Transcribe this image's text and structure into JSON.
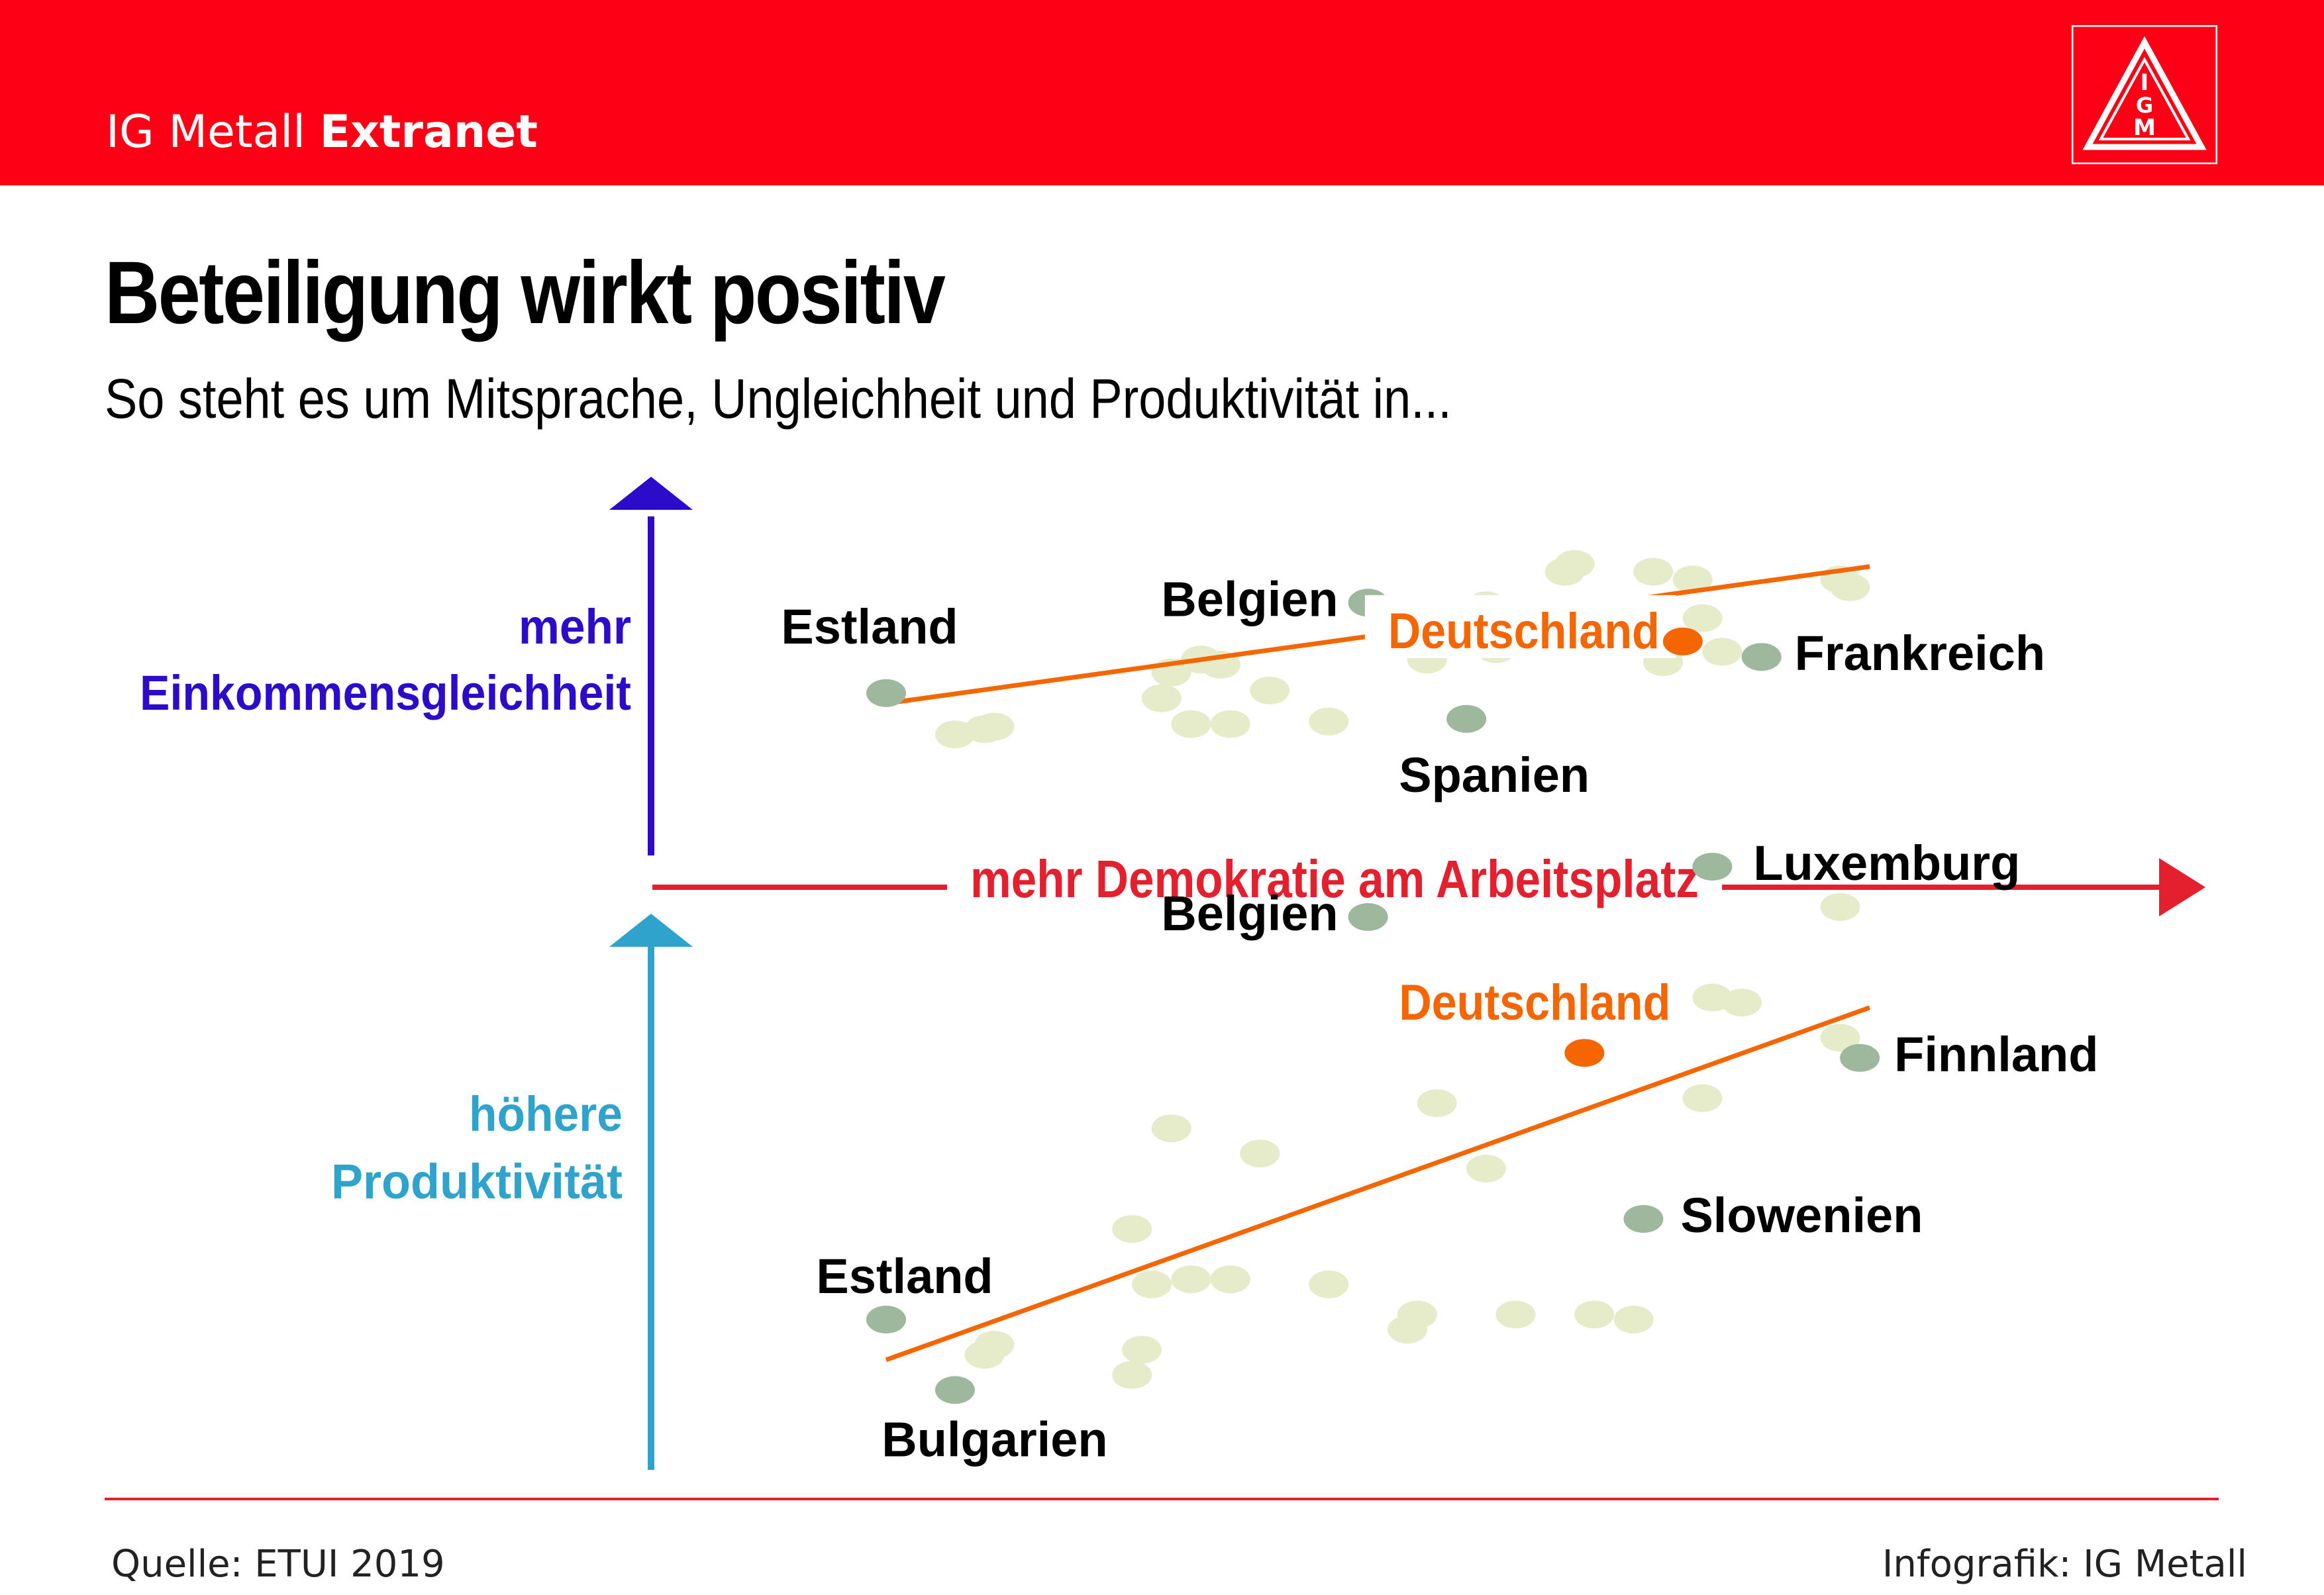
{
  "header": {
    "brand_regular": "IG Metall ",
    "brand_bold": "Extranet",
    "logo_text": "IGM"
  },
  "title": "Beteiligung wirkt positiv",
  "subtitle": "So steht es um Mitsprache, Ungleichheit und Produktivität in...",
  "footer": {
    "source": "Quelle: ETUI 2019",
    "credit": "Infografik: IG Metall"
  },
  "colors": {
    "header_red": "#fe0016",
    "axis_red": "#e5202e",
    "income_axis": "#2d0bcb",
    "productivity_axis": "#30a3cc",
    "highlight_orange": "#f56600",
    "labeled_point": "#9db89c",
    "background_point": "#e6ecc9"
  },
  "chart_data": [
    {
      "type": "scatter",
      "title": "",
      "xlabel": "mehr Demokratie am Arbeitsplatz",
      "ylabel": "mehr Einkommensgleichheit",
      "xlim": [
        0,
        100
      ],
      "ylim": [
        0,
        100
      ],
      "trendline": {
        "x": [
          0,
          100
        ],
        "y": [
          4,
          57
        ]
      },
      "highlight": {
        "label": "Deutschland",
        "x": 81,
        "y": 28
      },
      "labeled_points": [
        {
          "label": "Estland",
          "x": 0,
          "y": 8
        },
        {
          "label": "Belgien",
          "x": 49,
          "y": 43
        },
        {
          "label": "Frankreich",
          "x": 89,
          "y": 22
        },
        {
          "label": "Spanien",
          "x": 59,
          "y": -2
        }
      ],
      "background_points": [
        {
          "x": 7,
          "y": -8
        },
        {
          "x": 10,
          "y": -6
        },
        {
          "x": 11,
          "y": -5
        },
        {
          "x": 28,
          "y": 6
        },
        {
          "x": 29,
          "y": 16
        },
        {
          "x": 31,
          "y": -4
        },
        {
          "x": 32,
          "y": 21
        },
        {
          "x": 34,
          "y": 19
        },
        {
          "x": 35,
          "y": -4
        },
        {
          "x": 39,
          "y": 9
        },
        {
          "x": 45,
          "y": -3
        },
        {
          "x": 55,
          "y": 21
        },
        {
          "x": 58,
          "y": 33
        },
        {
          "x": 61,
          "y": 42
        },
        {
          "x": 62,
          "y": 25
        },
        {
          "x": 69,
          "y": 55
        },
        {
          "x": 70,
          "y": 58
        },
        {
          "x": 78,
          "y": 55
        },
        {
          "x": 79,
          "y": 20
        },
        {
          "x": 80,
          "y": 27
        },
        {
          "x": 82,
          "y": 52
        },
        {
          "x": 83,
          "y": 37
        },
        {
          "x": 85,
          "y": 24
        },
        {
          "x": 97,
          "y": 52
        },
        {
          "x": 98,
          "y": 49
        }
      ]
    },
    {
      "type": "scatter",
      "title": "",
      "xlabel": "mehr Demokratie am Arbeitsplatz",
      "ylabel": "höhere Produktivität",
      "xlim": [
        0,
        100
      ],
      "ylim": [
        0,
        100
      ],
      "trendline": {
        "x": [
          0,
          100
        ],
        "y": [
          12,
          82
        ]
      },
      "highlight": {
        "label": "Deutschland",
        "x": 71,
        "y": 73
      },
      "labeled_points": [
        {
          "label": "Estland",
          "x": 0,
          "y": 20
        },
        {
          "label": "Bulgarien",
          "x": 7,
          "y": 6
        },
        {
          "label": "Belgien",
          "x": 49,
          "y": 100
        },
        {
          "label": "Luxemburg",
          "x": 84,
          "y": 110
        },
        {
          "label": "Finnland",
          "x": 99,
          "y": 72
        },
        {
          "label": "Slowenien",
          "x": 77,
          "y": 40
        }
      ],
      "background_points": [
        {
          "x": 10,
          "y": 13
        },
        {
          "x": 11,
          "y": 15
        },
        {
          "x": 25,
          "y": 9
        },
        {
          "x": 26,
          "y": 14
        },
        {
          "x": 25,
          "y": 38
        },
        {
          "x": 27,
          "y": 27
        },
        {
          "x": 29,
          "y": 58
        },
        {
          "x": 31,
          "y": 28
        },
        {
          "x": 35,
          "y": 28
        },
        {
          "x": 38,
          "y": 53
        },
        {
          "x": 45,
          "y": 27
        },
        {
          "x": 53,
          "y": 18
        },
        {
          "x": 54,
          "y": 21
        },
        {
          "x": 56,
          "y": 63
        },
        {
          "x": 61,
          "y": 50
        },
        {
          "x": 64,
          "y": 21
        },
        {
          "x": 72,
          "y": 21
        },
        {
          "x": 76,
          "y": 20
        },
        {
          "x": 83,
          "y": 64
        },
        {
          "x": 84,
          "y": 84
        },
        {
          "x": 87,
          "y": 83
        },
        {
          "x": 97,
          "y": 76
        },
        {
          "x": 97,
          "y": 102
        }
      ]
    }
  ]
}
